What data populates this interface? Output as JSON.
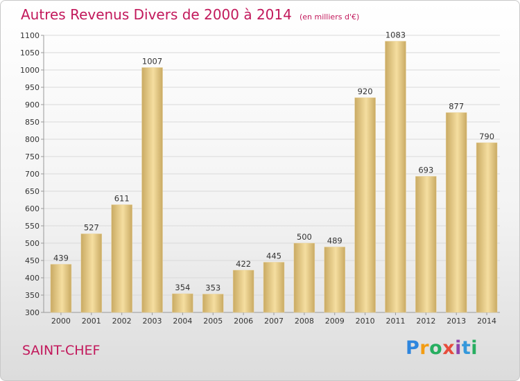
{
  "header": {
    "title": "Autres Revenus Divers de 2000 à 2014",
    "subtitle": "(en milliers d'€)"
  },
  "footer": {
    "commune": "SAINT-CHEF",
    "logo": {
      "letters": [
        "P",
        "r",
        "o",
        "x",
        "i",
        "t",
        "i"
      ],
      "colors": [
        "#2e86de",
        "#f39c12",
        "#27ae60",
        "#e74c3c",
        "#8e44ad",
        "#3498db",
        "#27ae60"
      ]
    }
  },
  "colors": {
    "bar_light": "#f5dea0",
    "bar_dark": "#c9aa63",
    "grid": "#d9d9d9",
    "title": "#c2185b"
  },
  "chart_data": {
    "type": "bar",
    "title": "Autres Revenus Divers de 2000 à 2014",
    "subtitle": "(en milliers d'€)",
    "categories": [
      "2000",
      "2001",
      "2002",
      "2003",
      "2004",
      "2005",
      "2006",
      "2007",
      "2008",
      "2009",
      "2010",
      "2011",
      "2012",
      "2013",
      "2014"
    ],
    "values": [
      439,
      527,
      611,
      1007,
      354,
      353,
      422,
      445,
      500,
      489,
      920,
      1083,
      693,
      877,
      790
    ],
    "ylim": [
      300,
      1100
    ],
    "yticks": [
      300,
      350,
      400,
      450,
      500,
      550,
      600,
      650,
      700,
      750,
      800,
      850,
      900,
      950,
      1000,
      1050,
      1100
    ],
    "grid": true,
    "legend": "none"
  }
}
